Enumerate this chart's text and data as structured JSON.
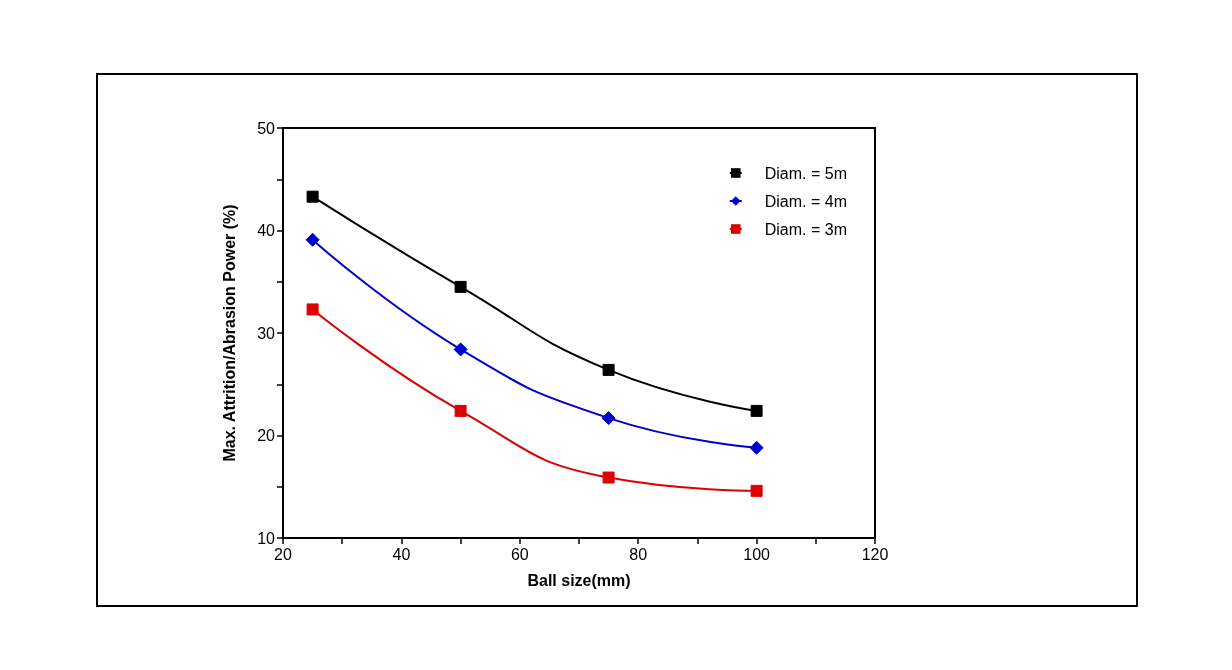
{
  "chart_data": {
    "type": "line",
    "xlabel": "Ball size(mm)",
    "ylabel": "Max. Attrition/Abrasion Power (%)",
    "x": [
      25,
      50,
      75,
      100
    ],
    "series": [
      {
        "name": "Diam. = 5m",
        "color": "#000000",
        "marker": "square",
        "values": [
          43.3,
          34.5,
          26.4,
          22.4
        ]
      },
      {
        "name": "Diam. = 4m",
        "color": "#0000cc",
        "marker": "diamond",
        "values": [
          39.1,
          28.4,
          21.7,
          18.8
        ]
      },
      {
        "name": "Diam. = 3m",
        "color": "#dd0000",
        "marker": "square",
        "values": [
          32.3,
          22.4,
          15.9,
          14.6
        ]
      }
    ],
    "xlim": [
      20,
      120
    ],
    "xticks": [
      20,
      40,
      60,
      80,
      100,
      120
    ],
    "ylim": [
      10,
      50
    ],
    "yticks": [
      10,
      20,
      30,
      40,
      50
    ],
    "grid": false,
    "legend": "top right"
  }
}
